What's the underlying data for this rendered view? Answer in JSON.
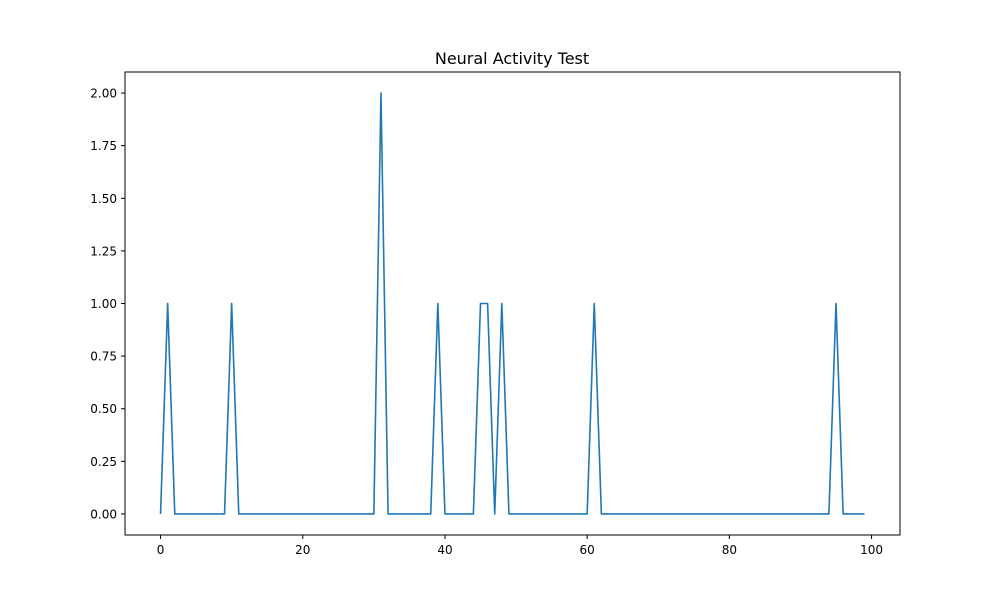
{
  "chart_data": {
    "type": "line",
    "title": "Neural Activity Test",
    "xlabel": "",
    "ylabel": "",
    "xlim": [
      -5,
      104
    ],
    "ylim": [
      -0.1,
      2.1
    ],
    "grid": false,
    "x_ticks": [
      0,
      20,
      40,
      60,
      80,
      100
    ],
    "x_tick_labels": [
      "0",
      "20",
      "40",
      "60",
      "80",
      "100"
    ],
    "y_ticks": [
      0,
      0.25,
      0.5,
      0.75,
      1.0,
      1.25,
      1.5,
      1.75,
      2.0
    ],
    "y_tick_labels": [
      "0.00",
      "0.25",
      "0.50",
      "0.75",
      "1.00",
      "1.25",
      "1.50",
      "1.75",
      "2.00"
    ],
    "colors": {
      "series": "#1f77b4",
      "axes": "#000000"
    },
    "series": [
      {
        "x": [
          0,
          1,
          2,
          3,
          4,
          5,
          6,
          7,
          8,
          9,
          10,
          11,
          12,
          13,
          14,
          15,
          16,
          17,
          18,
          19,
          20,
          21,
          22,
          23,
          24,
          25,
          26,
          27,
          28,
          29,
          30,
          31,
          32,
          33,
          34,
          35,
          36,
          37,
          38,
          39,
          40,
          41,
          42,
          43,
          44,
          45,
          46,
          47,
          48,
          49,
          50,
          51,
          52,
          53,
          54,
          55,
          56,
          57,
          58,
          59,
          60,
          61,
          62,
          63,
          64,
          65,
          66,
          67,
          68,
          69,
          70,
          71,
          72,
          73,
          74,
          75,
          76,
          77,
          78,
          79,
          80,
          81,
          82,
          83,
          84,
          85,
          86,
          87,
          88,
          89,
          90,
          91,
          92,
          93,
          94,
          95,
          96,
          97,
          98,
          99
        ],
        "values": [
          0,
          1,
          0,
          0,
          0,
          0,
          0,
          0,
          0,
          0,
          1,
          0,
          0,
          0,
          0,
          0,
          0,
          0,
          0,
          0,
          0,
          0,
          0,
          0,
          0,
          0,
          0,
          0,
          0,
          0,
          0,
          2,
          0,
          0,
          0,
          0,
          0,
          0,
          0,
          1,
          0,
          0,
          0,
          0,
          0,
          1,
          1,
          0,
          1,
          0,
          0,
          0,
          0,
          0,
          0,
          0,
          0,
          0,
          0,
          0,
          0,
          1,
          0,
          0,
          0,
          0,
          0,
          0,
          0,
          0,
          0,
          0,
          0,
          0,
          0,
          0,
          0,
          0,
          0,
          0,
          0,
          0,
          0,
          0,
          0,
          0,
          0,
          0,
          0,
          0,
          0,
          0,
          0,
          0,
          0,
          1,
          0,
          0,
          0,
          0
        ]
      }
    ]
  }
}
